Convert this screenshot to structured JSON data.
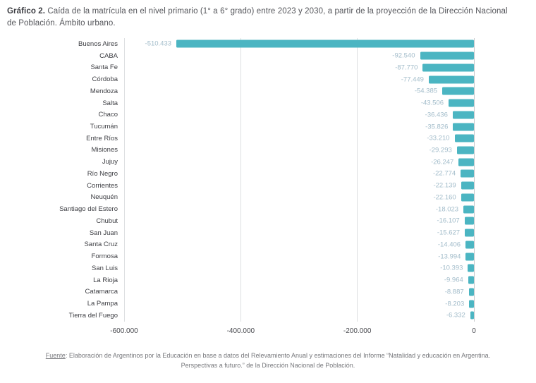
{
  "title": {
    "prefix": "Gráfico 2.",
    "text": " Caída de la matrícula en el nivel primario (1° a 6° grado) entre 2023 y 2030, a partir de la proyección de la Dirección Nacional de Población. Ámbito urbano."
  },
  "chart_data": {
    "type": "bar",
    "orientation": "horizontal",
    "title": "Caída de la matrícula en el nivel primario (1° a 6° grado) entre 2023 y 2030",
    "xlabel": "",
    "ylabel": "",
    "xlim": [
      -600000,
      0
    ],
    "grid": true,
    "bar_color": "#4bb5c2",
    "value_label_color": "#a2bcca",
    "categories": [
      "Buenos Aires",
      "CABA",
      "Santa Fe",
      "Córdoba",
      "Mendoza",
      "Salta",
      "Chaco",
      "Tucumán",
      "Entre Ríos",
      "Misiones",
      "Jujuy",
      "Río Negro",
      "Corrientes",
      "Neuquén",
      "Santiago del Estero",
      "Chubut",
      "San Juan",
      "Santa Cruz",
      "Formosa",
      "San Luis",
      "La Rioja",
      "Catamarca",
      "La Pampa",
      "Tierra del Fuego"
    ],
    "values": [
      -510433,
      -92540,
      -87770,
      -77449,
      -54385,
      -43506,
      -36436,
      -35826,
      -33210,
      -29293,
      -26247,
      -22774,
      -22139,
      -22160,
      -18023,
      -16107,
      -15627,
      -14406,
      -13994,
      -10393,
      -9964,
      -8887,
      -8203,
      -6332
    ],
    "value_labels": [
      "-510.433",
      "-92.540",
      "-87.770",
      "-77.449",
      "-54.385",
      "-43.506",
      "-36.436",
      "-35.826",
      "-33.210",
      "-29.293",
      "-26.247",
      "-22.774",
      "-22.139",
      "-22.160",
      "-18.023",
      "-16.107",
      "-15.627",
      "-14.406",
      "-13.994",
      "-10.393",
      "-9.964",
      "-8.887",
      "-8.203",
      "-6.332"
    ],
    "x_ticks": [
      {
        "value": -600000,
        "label": "-600.000"
      },
      {
        "value": -400000,
        "label": "-400.000"
      },
      {
        "value": -200000,
        "label": "-200.000"
      },
      {
        "value": 0,
        "label": "0"
      }
    ]
  },
  "footer": {
    "source_label": "Fuente",
    "text": ": Elaboración de Argentinos por la Educación en base a datos del Relevamiento Anual y estimaciones del Informe “Natalidad y educación en Argentina. Perspectivas a futuro.” de la Dirección Nacional de Población."
  }
}
